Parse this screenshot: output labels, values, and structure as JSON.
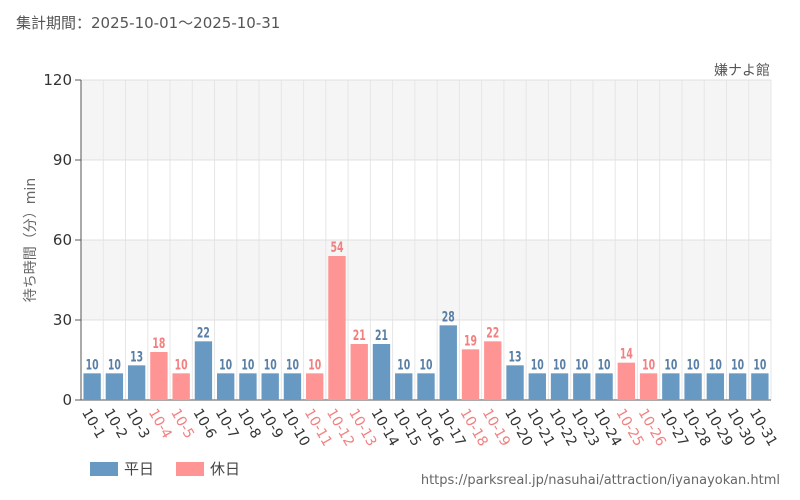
{
  "period_label": "集計期間：2025-10-01〜2025-10-31",
  "venue": "嫌ナよ館",
  "url": "https://parksreal.jp/nasuhai/attraction/iyanayokan.html",
  "colors": {
    "weekday": "#6799c3",
    "holiday": "#ff9494",
    "weekday_text": "#5a7fa6",
    "holiday_text": "#f28080"
  },
  "chart_data": {
    "type": "bar",
    "title": "",
    "ylabel": "待ち時間（分）min",
    "xlabel": "",
    "ylim": [
      0,
      120
    ],
    "yticks": [
      0,
      30,
      60,
      90,
      120
    ],
    "legend": {
      "position": "bottom-left",
      "entries": [
        "平日",
        "休日"
      ]
    },
    "categories": [
      "10-1",
      "10-2",
      "10-3",
      "10-4",
      "10-5",
      "10-6",
      "10-7",
      "10-8",
      "10-9",
      "10-10",
      "10-11",
      "10-12",
      "10-13",
      "10-14",
      "10-15",
      "10-16",
      "10-17",
      "10-18",
      "10-19",
      "10-20",
      "10-21",
      "10-22",
      "10-23",
      "10-24",
      "10-25",
      "10-26",
      "10-27",
      "10-28",
      "10-29",
      "10-30",
      "10-31"
    ],
    "values": [
      10,
      10,
      13,
      18,
      10,
      22,
      10,
      10,
      10,
      10,
      10,
      54,
      21,
      21,
      10,
      10,
      28,
      19,
      22,
      13,
      10,
      10,
      10,
      10,
      14,
      10,
      10,
      10,
      10,
      10,
      10
    ],
    "day_type": [
      "平日",
      "平日",
      "平日",
      "休日",
      "休日",
      "平日",
      "平日",
      "平日",
      "平日",
      "平日",
      "休日",
      "休日",
      "休日",
      "平日",
      "平日",
      "平日",
      "平日",
      "休日",
      "休日",
      "平日",
      "平日",
      "平日",
      "平日",
      "平日",
      "休日",
      "休日",
      "平日",
      "平日",
      "平日",
      "平日",
      "平日"
    ]
  }
}
